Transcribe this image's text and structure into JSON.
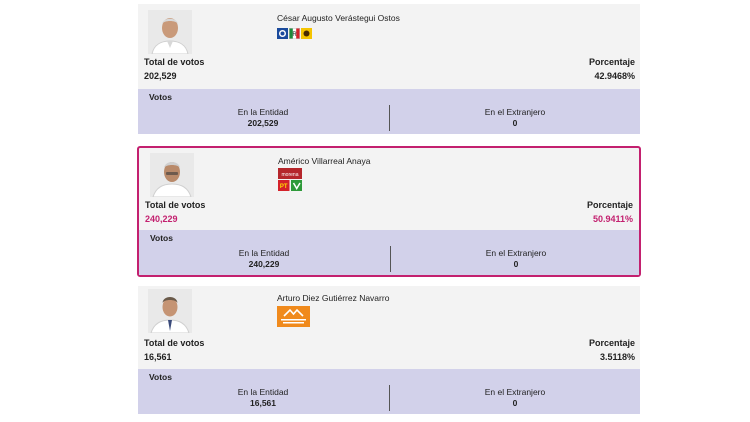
{
  "candidates": [
    {
      "name": "César Augusto Verástegui Ostos",
      "total_label": "Total de votos",
      "total": "202,529",
      "pct_label": "Porcentaje",
      "pct": "42.9468%",
      "votes_title": "Votos",
      "entity_label": "En la Entidad",
      "entity_value": "202,529",
      "abroad_label": "En el Extranjero",
      "abroad_value": "0"
    },
    {
      "name": "Américo Villarreal Anaya",
      "total_label": "Total de votos",
      "total": "240,229",
      "pct_label": "Porcentaje",
      "pct": "50.9411%",
      "votes_title": "Votos",
      "entity_label": "En la Entidad",
      "entity_value": "240,229",
      "abroad_label": "En el Extranjero",
      "abroad_value": "0"
    },
    {
      "name": "Arturo Diez Gutiérrez Navarro",
      "total_label": "Total de votos",
      "total": "16,561",
      "pct_label": "Porcentaje",
      "pct": "3.5118%",
      "votes_title": "Votos",
      "entity_label": "En la Entidad",
      "entity_value": "16,561",
      "abroad_label": "En el Extranjero",
      "abroad_value": "0"
    }
  ],
  "colors": {
    "highlight": "#c3206f",
    "votes_band": "#d2d1ea",
    "card_bg": "#f3f3f3"
  },
  "icons": {
    "c1_logos": [
      "pan-logo",
      "pri-logo",
      "prd-logo"
    ],
    "c2_logos": [
      "morena-logo",
      "pt-logo",
      "pvem-logo"
    ],
    "c3_logos": [
      "movimiento-ciudadano-logo"
    ]
  }
}
